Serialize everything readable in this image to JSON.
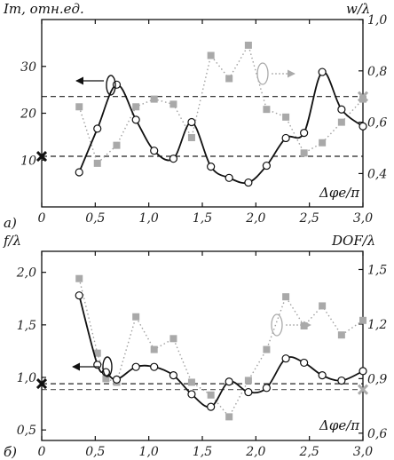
{
  "chart_data": [
    {
      "type": "line",
      "panel_label": "а)",
      "xlabel": "Δφe/π",
      "ylabel_left": "Im, отн.ед.",
      "ylabel_right": "w/λ",
      "x_ticks": [
        "0",
        "0,5",
        "1,0",
        "1,5",
        "2,0",
        "2,5",
        "3,0"
      ],
      "y_left_ticks": [
        "10",
        "20",
        "30"
      ],
      "y_right_ticks": [
        "0,4",
        "0,6",
        "0,8",
        "1,0"
      ],
      "xlim": [
        0,
        3
      ],
      "ylim_left": [
        0,
        40
      ],
      "ylim_right": [
        0.27,
        1.0
      ],
      "reference_left": 10.8,
      "reference_right": 0.7,
      "series": [
        {
          "axis": "left",
          "style": "solid-circles",
          "x": [
            0.35,
            0.52,
            0.7,
            0.88,
            1.05,
            1.23,
            1.4,
            1.58,
            1.75,
            1.93,
            2.1,
            2.28,
            2.45,
            2.62,
            2.8,
            3.0
          ],
          "y": [
            7.4,
            16.7,
            26.1,
            18.6,
            12.0,
            10.3,
            18.1,
            8.6,
            6.2,
            5.2,
            8.8,
            14.7,
            15.8,
            28.8,
            20.8,
            17.2
          ]
        },
        {
          "axis": "right",
          "style": "dotted-squares",
          "x": [
            0.35,
            0.52,
            0.7,
            0.88,
            1.05,
            1.23,
            1.4,
            1.58,
            1.75,
            1.93,
            2.1,
            2.28,
            2.45,
            2.62,
            2.8,
            3.0
          ],
          "y": [
            0.66,
            0.44,
            0.51,
            0.66,
            0.69,
            0.67,
            0.54,
            0.86,
            0.77,
            0.9,
            0.65,
            0.62,
            0.48,
            0.52,
            0.6,
            0.69
          ]
        }
      ]
    },
    {
      "type": "line",
      "panel_label": "б)",
      "xlabel": "Δφe/π",
      "ylabel_left": "f/λ",
      "ylabel_right": "DOF/λ",
      "x_ticks": [
        "0",
        "0,5",
        "1,0",
        "1,5",
        "2,0",
        "2,5",
        "3,0"
      ],
      "y_left_ticks": [
        "0,5",
        "1,0",
        "1,5",
        "2,0"
      ],
      "y_right_ticks": [
        "0,6",
        "0,9",
        "1,2",
        "1,5"
      ],
      "xlim": [
        0,
        3
      ],
      "ylim_left": [
        0.4,
        2.2
      ],
      "ylim_right": [
        0.56,
        1.6
      ],
      "reference_left": 0.94,
      "reference_right": 0.84,
      "series": [
        {
          "axis": "left",
          "style": "solid-circles",
          "x": [
            0.35,
            0.52,
            0.6,
            0.7,
            0.88,
            1.05,
            1.23,
            1.4,
            1.58,
            1.75,
            1.93,
            2.1,
            2.28,
            2.45,
            2.62,
            2.8,
            3.0
          ],
          "y": [
            1.78,
            1.12,
            1.05,
            0.98,
            1.1,
            1.1,
            1.02,
            0.84,
            0.72,
            0.96,
            0.86,
            0.9,
            1.18,
            1.14,
            1.02,
            0.97,
            1.06
          ]
        },
        {
          "axis": "right",
          "style": "dotted-squares",
          "x": [
            0.35,
            0.52,
            0.6,
            0.7,
            0.88,
            1.05,
            1.23,
            1.4,
            1.58,
            1.75,
            1.93,
            2.1,
            2.28,
            2.45,
            2.62,
            2.8,
            3.0
          ],
          "y": [
            1.45,
            1.04,
            0.9,
            0.88,
            1.24,
            1.06,
            1.12,
            0.88,
            0.81,
            0.69,
            0.89,
            1.06,
            1.35,
            1.19,
            1.3,
            1.14,
            1.22
          ]
        }
      ]
    }
  ]
}
